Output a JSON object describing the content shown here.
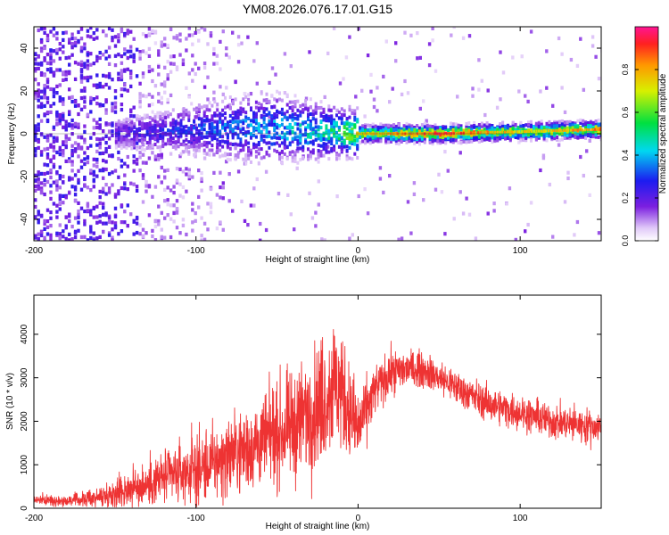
{
  "figure_title": "YM08.2026.076.17.01.G15",
  "chart_data": [
    {
      "type": "heatmap",
      "title": "YM08.2026.076.17.01.G15",
      "xlabel": "Height of straight line (km)",
      "ylabel": "Frequency (Hz)",
      "xlim": [
        -200,
        150
      ],
      "ylim": [
        -50,
        50
      ],
      "x_ticks": [
        -200,
        -100,
        0,
        100
      ],
      "x_tick_labels": [
        "-200",
        "-100",
        "0",
        "100"
      ],
      "y_ticks": [
        -40,
        -20,
        0,
        20,
        40
      ],
      "y_tick_labels": [
        "-40",
        "-20",
        "0",
        "20",
        "40"
      ],
      "colorbar": {
        "label": "Normalized spectral amplitude",
        "range": [
          0,
          1
        ],
        "ticks": [
          0.0,
          0.2,
          0.4,
          0.6,
          0.8
        ],
        "tick_labels": [
          "0.0",
          "0.2",
          "0.4",
          "0.6",
          "0.8"
        ]
      },
      "ridge_frequency": {
        "x": [
          -150,
          -100,
          -60,
          -40,
          -20,
          0,
          50,
          100,
          150
        ],
        "freq_hz": [
          0,
          2,
          3,
          2,
          1,
          0,
          0,
          1,
          2
        ],
        "peak_amplitude": [
          0.25,
          0.35,
          0.45,
          0.5,
          0.55,
          0.8,
          0.98,
          0.8,
          0.9
        ]
      }
    },
    {
      "type": "line",
      "title": "",
      "xlabel": "Height of straight line (km)",
      "ylabel": "SNR (10 * v/v)",
      "xlim": [
        -200,
        150
      ],
      "ylim": [
        0,
        4900
      ],
      "x_ticks": [
        -200,
        -100,
        0,
        100
      ],
      "x_tick_labels": [
        "-200",
        "-100",
        "0",
        "100"
      ],
      "y_ticks": [
        0,
        1000,
        2000,
        3000,
        4000
      ],
      "y_tick_labels": [
        "0",
        "1000",
        "2000",
        "3000",
        "4000"
      ],
      "series": [
        {
          "name": "SNR",
          "color": "#ee3333",
          "x": [
            -200,
            -190,
            -180,
            -170,
            -160,
            -150,
            -140,
            -130,
            -120,
            -110,
            -100,
            -90,
            -80,
            -70,
            -60,
            -50,
            -40,
            -30,
            -20,
            -15,
            -10,
            -5,
            0,
            10,
            20,
            30,
            40,
            50,
            60,
            70,
            80,
            90,
            100,
            110,
            120,
            130,
            140,
            150
          ],
          "y": [
            200,
            180,
            170,
            200,
            250,
            350,
            450,
            550,
            700,
            800,
            900,
            1000,
            1200,
            1350,
            1500,
            1700,
            1900,
            2200,
            2600,
            2900,
            2700,
            2200,
            1800,
            2700,
            3100,
            3200,
            3200,
            3000,
            2800,
            2600,
            2400,
            2300,
            2200,
            2100,
            2000,
            1950,
            1900,
            1850
          ],
          "spread": [
            100,
            100,
            100,
            150,
            200,
            300,
            400,
            450,
            550,
            600,
            700,
            750,
            800,
            850,
            900,
            1000,
            1100,
            1200,
            1300,
            1400,
            1200,
            1000,
            800,
            500,
            450,
            400,
            350,
            350,
            350,
            350,
            350,
            350,
            350,
            350,
            350,
            350,
            350,
            350
          ]
        }
      ]
    }
  ]
}
